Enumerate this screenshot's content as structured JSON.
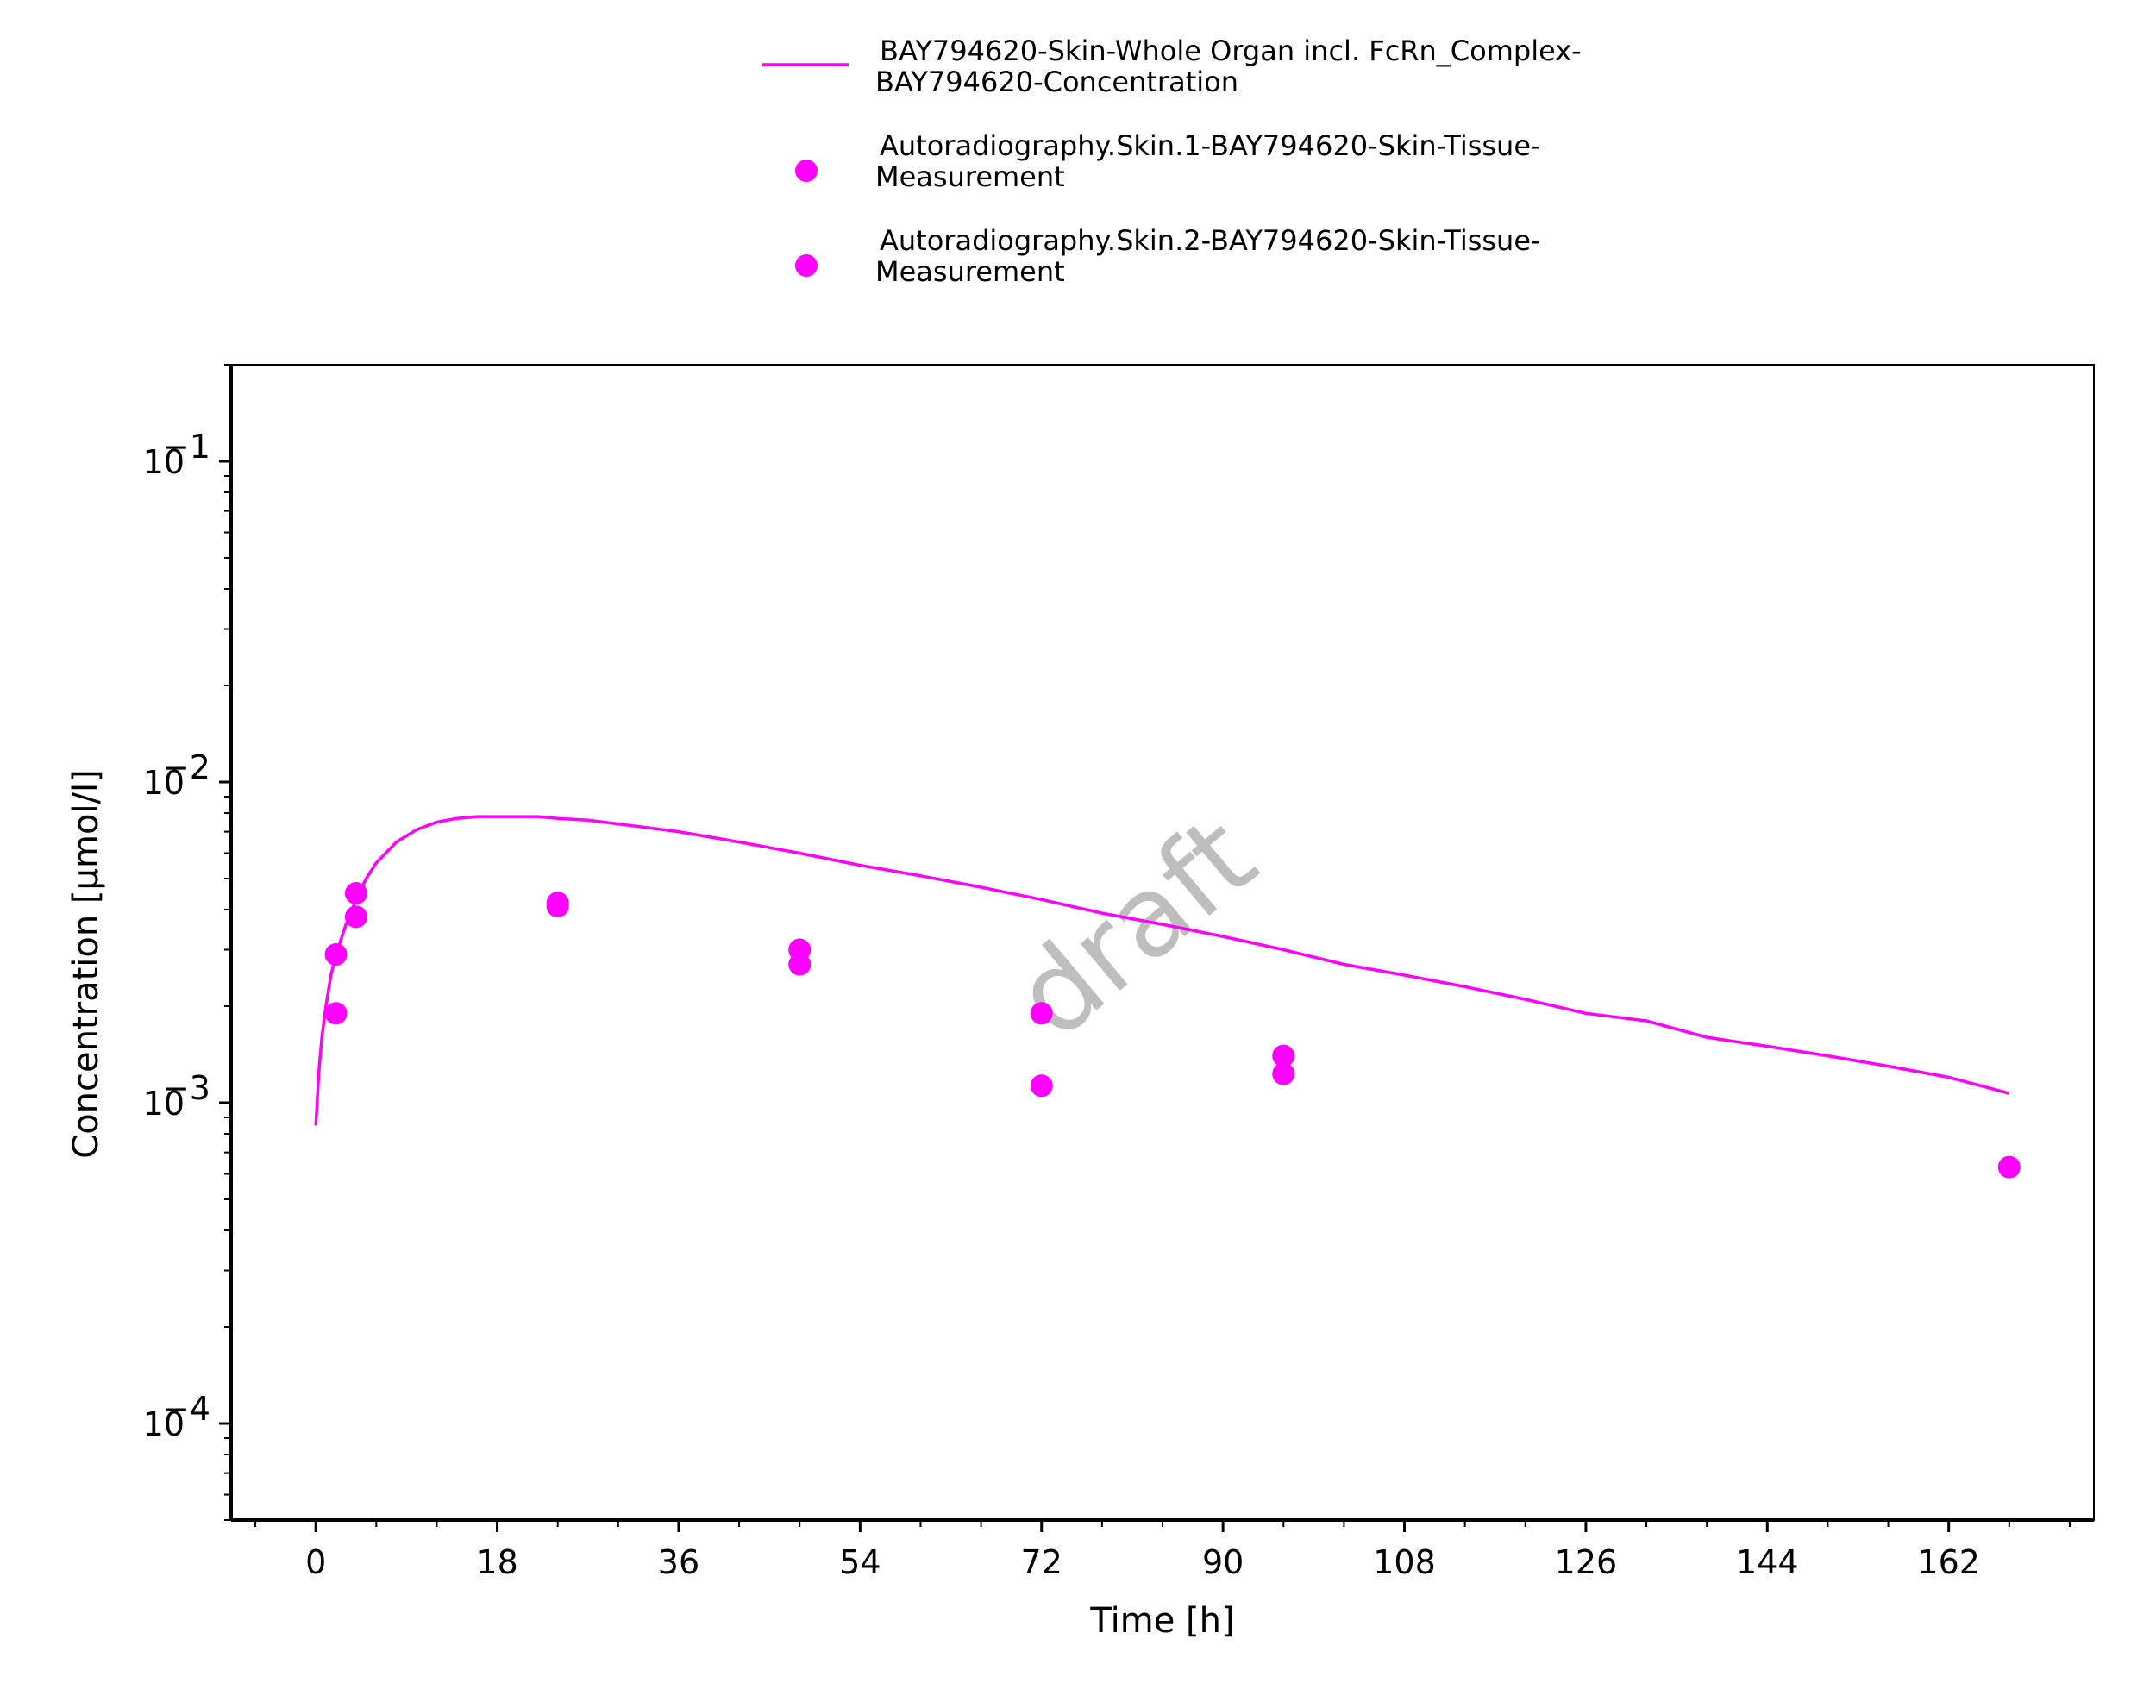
{
  "chart_data": {
    "type": "scatter",
    "title": "",
    "xlabel": "Time [h]",
    "ylabel": "Concentration [µmol/l]",
    "x_scale": "linear",
    "y_scale": "log",
    "xlim": [
      -8.4,
      176.4
    ],
    "ylim": [
      5e-05,
      0.2
    ],
    "x_ticks": [
      0,
      18,
      36,
      54,
      72,
      90,
      108,
      126,
      144,
      162
    ],
    "x_tick_labels": [
      "0",
      "18",
      "36",
      "54",
      "72",
      "90",
      "108",
      "126",
      "144",
      "162"
    ],
    "y_ticks": [
      {
        "value": 0.1,
        "base": "10",
        "exp": "−1"
      },
      {
        "value": 0.01,
        "base": "10",
        "exp": "−2"
      },
      {
        "value": 0.001,
        "base": "10",
        "exp": "−3"
      },
      {
        "value": 0.0001,
        "base": "10",
        "exp": "−4"
      }
    ],
    "grid": false,
    "legend_position": "top-center",
    "watermark": "draft",
    "series": [
      {
        "name": "BAY794620-Skin-Whole Organ incl. FcRn_Complex-BAY794620-Concentration",
        "legend_lines": [
          "BAY794620-Skin-Whole Organ incl. FcRn_Complex-",
          "BAY794620-Concentration"
        ],
        "kind": "line",
        "color": "#ff00ff",
        "x": [
          0,
          0.3,
          0.6,
          1,
          1.5,
          2,
          3,
          4,
          5,
          6,
          8,
          10,
          12,
          14,
          16,
          18,
          20,
          22,
          24,
          27,
          30,
          36,
          42,
          48,
          54,
          60,
          66,
          72,
          78,
          84,
          90,
          96,
          102,
          108,
          114,
          120,
          126,
          132,
          138,
          144,
          150,
          156,
          162,
          168
        ],
        "y": [
          0.00085,
          0.00125,
          0.0016,
          0.002,
          0.0025,
          0.0029,
          0.0036,
          0.0043,
          0.005,
          0.0056,
          0.0065,
          0.0071,
          0.0075,
          0.0077,
          0.0078,
          0.0078,
          0.0078,
          0.0078,
          0.0077,
          0.0076,
          0.0074,
          0.007,
          0.0065,
          0.006,
          0.0055,
          0.0051,
          0.0047,
          0.0043,
          0.0039,
          0.0036,
          0.0033,
          0.003,
          0.0027,
          0.0025,
          0.0023,
          0.0021,
          0.0019,
          0.0018,
          0.0016,
          0.0015,
          0.0014,
          0.0013,
          0.0012,
          0.00107
        ]
      },
      {
        "name": "Autoradiography.Skin.1-BAY794620-Skin-Tissue-Measurement",
        "legend_lines": [
          "Autoradiography.Skin.1-BAY794620-Skin-Tissue-",
          "Measurement"
        ],
        "kind": "scatter",
        "color": "#ff00ff",
        "x": [
          2,
          4,
          24,
          48,
          72,
          96,
          168
        ],
        "y": [
          0.0029,
          0.0045,
          0.0042,
          0.003,
          0.0019,
          0.0014,
          0.00063
        ]
      },
      {
        "name": "Autoradiography.Skin.2-BAY794620-Skin-Tissue-Measurement",
        "legend_lines": [
          "Autoradiography.Skin.2-BAY794620-Skin-Tissue-",
          "Measurement"
        ],
        "kind": "scatter",
        "color": "#ff00ff",
        "x": [
          2,
          4,
          24,
          48,
          72,
          96
        ],
        "y": [
          0.0019,
          0.0038,
          0.0041,
          0.0027,
          0.00113,
          0.00123
        ]
      }
    ]
  }
}
